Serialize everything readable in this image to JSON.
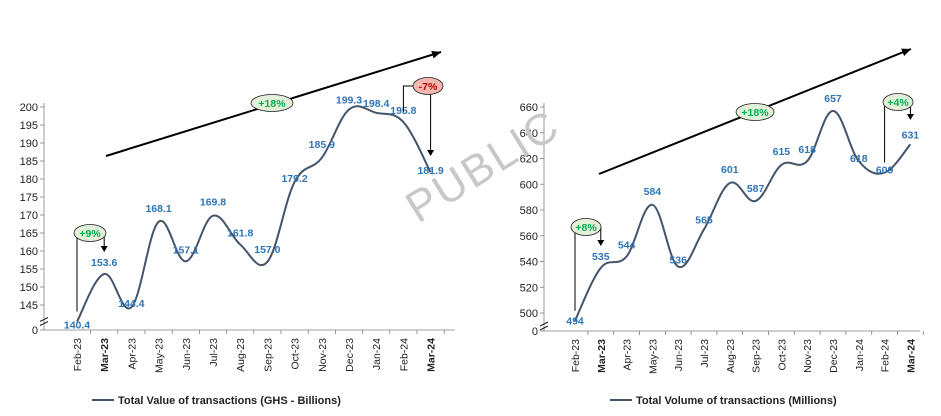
{
  "watermark": "PUBLIC",
  "colors": {
    "line": "#44546a",
    "label": "#2e75b6",
    "pill_up_fill": "#e2efd9",
    "pill_up_text": "#00b050",
    "pill_down_fill": "#f4b8b0",
    "pill_down_text": "#c00000",
    "axis": "#7f7f7f",
    "trend": "#000000"
  },
  "chart_data": [
    {
      "type": "line",
      "categories": [
        "Feb-23",
        "Mar-23",
        "Apr-23",
        "May-23",
        "Jun-23",
        "Jul-23",
        "Aug-23",
        "Sep-23",
        "Oct-23",
        "Nov-23",
        "Dec-23",
        "Jan-24",
        "Feb-24",
        "Mar-24"
      ],
      "bold_categories": [
        "Mar-23",
        "Mar-24"
      ],
      "series": [
        {
          "name": "Total Value of transactions (GHS - Billions)",
          "values": [
            140.4,
            153.6,
            144.4,
            168.1,
            157.1,
            169.8,
            161.8,
            157.0,
            179.2,
            185.9,
            199.3,
            198.4,
            195.8,
            181.9
          ]
        }
      ],
      "data_labels": [
        "140.4",
        "153.6",
        "144.4",
        "168.1",
        "157.1",
        "169.8",
        "161.8",
        "157.0",
        "179.2",
        "185.9",
        "199.3",
        "198.4",
        "195.8",
        "181.9"
      ],
      "yticks": [
        0,
        145,
        150,
        155,
        160,
        165,
        170,
        175,
        180,
        185,
        190,
        195,
        200
      ],
      "axis_break": true,
      "annotations": [
        {
          "text": "+9%",
          "from": "Feb-23",
          "to": "Mar-23",
          "kind": "up"
        },
        {
          "text": "+18%",
          "kind": "up",
          "trend": true
        },
        {
          "text": "-7%",
          "from": "Feb-24",
          "to": "Mar-24",
          "kind": "down"
        }
      ],
      "legend": "bottom"
    },
    {
      "type": "line",
      "categories": [
        "Feb-23",
        "Mar-23",
        "Apr-23",
        "May-23",
        "Jun-23",
        "Jul-23",
        "Aug-23",
        "Sep-23",
        "Oct-23",
        "Nov-23",
        "Dec-23",
        "Jan-24",
        "Feb-24",
        "Mar-24"
      ],
      "bold_categories": [
        "Mar-23",
        "Mar-24"
      ],
      "series": [
        {
          "name": "Total Volume of transactions (Millions)",
          "values": [
            494,
            535,
            544,
            584,
            536,
            565,
            601,
            587,
            615,
            618,
            657,
            618,
            609,
            631
          ]
        }
      ],
      "data_labels": [
        "494",
        "535",
        "544",
        "584",
        "536",
        "565",
        "601",
        "587",
        "615",
        "618",
        "657",
        "618",
        "609",
        "631"
      ],
      "yticks": [
        0,
        500,
        520,
        540,
        560,
        580,
        600,
        620,
        640,
        660
      ],
      "axis_break": true,
      "annotations": [
        {
          "text": "+8%",
          "from": "Feb-23",
          "to": "Mar-23",
          "kind": "up"
        },
        {
          "text": "+18%",
          "kind": "up",
          "trend": true
        },
        {
          "text": "+4%",
          "from": "Feb-24",
          "to": "Mar-24",
          "kind": "up"
        }
      ],
      "legend": "bottom"
    }
  ]
}
